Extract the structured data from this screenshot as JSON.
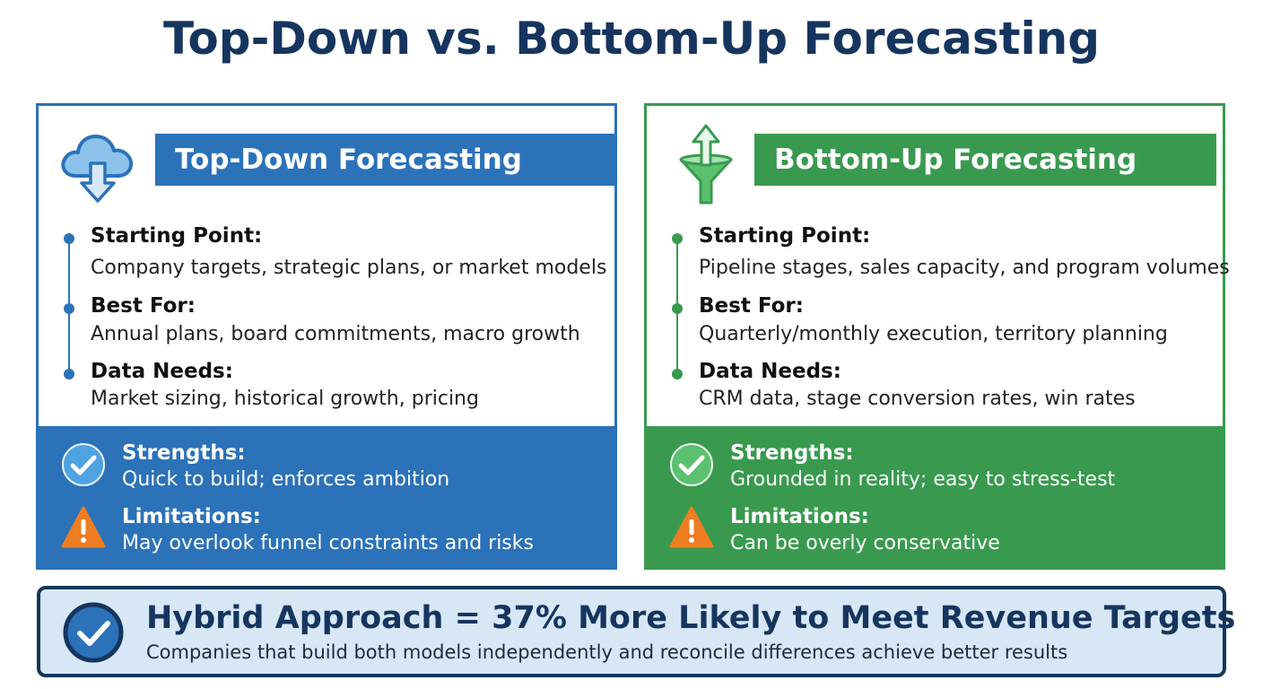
{
  "title": "Top-Down vs. Bottom-Up Forecasting",
  "colors": {
    "navy": "#16355e",
    "top_down_blue": "#2b72b9",
    "bottom_up_green": "#399a4f",
    "warning_orange": "#ef7d22",
    "hybrid_bg": "#d7e7f6"
  },
  "top_down": {
    "icon": "cloud-download-icon",
    "header": "Top-Down Forecasting",
    "items": [
      {
        "title": "Starting Point:",
        "text": "Company targets, strategic plans, or market models"
      },
      {
        "title": "Best For:",
        "text": "Annual plans, board commitments, macro growth"
      },
      {
        "title": "Data Needs:",
        "text": "Market sizing, historical growth, pricing"
      }
    ],
    "strengths": {
      "icon": "checkmark-icon",
      "title": "Strengths:",
      "text": "Quick to build; enforces ambition"
    },
    "limitations": {
      "icon": "warning-icon",
      "title": "Limitations:",
      "text": "May overlook funnel constraints and risks"
    }
  },
  "bottom_up": {
    "icon": "funnel-up-arrow-icon",
    "header": "Bottom-Up Forecasting",
    "items": [
      {
        "title": "Starting Point:",
        "text": "Pipeline stages, sales capacity, and program volumes"
      },
      {
        "title": "Best For:",
        "text": "Quarterly/monthly execution, territory planning"
      },
      {
        "title": "Data Needs:",
        "text": "CRM data, stage conversion rates, win rates"
      }
    ],
    "strengths": {
      "icon": "checkmark-icon",
      "title": "Strengths:",
      "text": "Grounded in reality; easy to stress-test"
    },
    "limitations": {
      "icon": "warning-icon",
      "title": "Limitations:",
      "text": "Can be overly conservative"
    }
  },
  "hybrid": {
    "icon": "checkmark-circle-icon",
    "title": "Hybrid Approach = 37% More Likely to Meet Revenue Targets",
    "subtitle": "Companies that build both models independently and reconcile differences achieve better results"
  }
}
